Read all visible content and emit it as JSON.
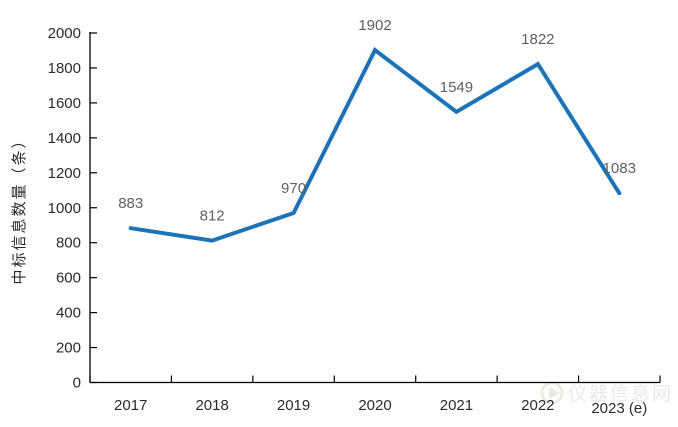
{
  "chart_data": {
    "type": "line",
    "categories": [
      "2017",
      "2018",
      "2019",
      "2020",
      "2021",
      "2022",
      "2023 (e)"
    ],
    "values": [
      883,
      812,
      970,
      1902,
      1549,
      1822,
      1083
    ],
    "point_labels": [
      "883",
      "812",
      "970",
      "1902",
      "1549",
      "1822",
      "1083"
    ],
    "title": "",
    "xlabel": "",
    "ylabel": "中标信息数量（条）",
    "ylim": [
      0,
      2000
    ],
    "y_ticks": [
      0,
      200,
      400,
      600,
      800,
      1000,
      1200,
      1400,
      1600,
      1800,
      2000
    ],
    "grid": false,
    "legend_position": "none",
    "line_color": "#1b74b8",
    "axis_color": "#000000",
    "data_label_color": "#5f5f5f",
    "tick_label_color": "#2b2b2b"
  },
  "watermark": {
    "text": "仪器信息网",
    "logo": "play-circle-logo"
  }
}
